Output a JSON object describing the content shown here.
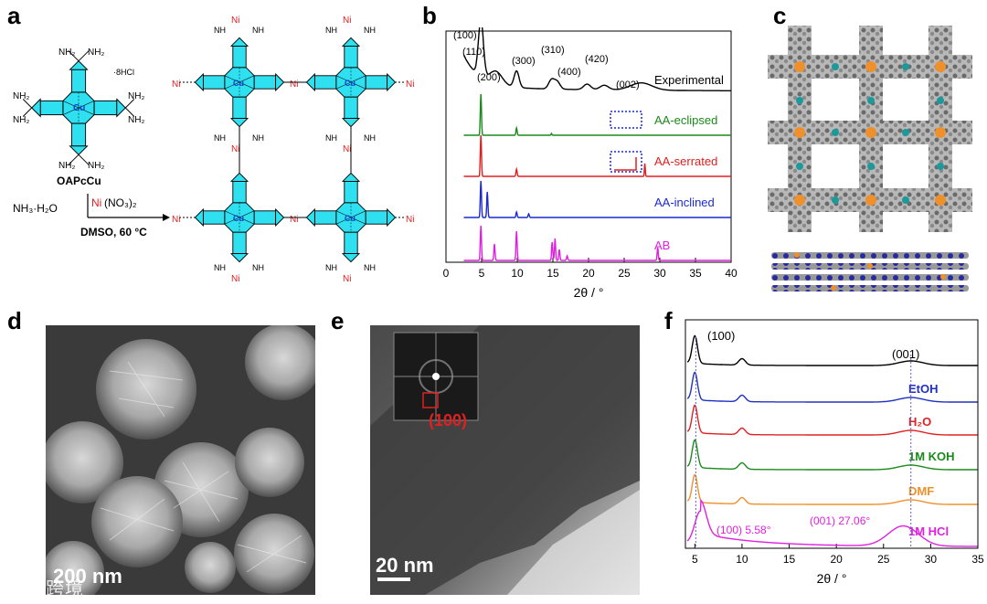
{
  "panels": {
    "a": "a",
    "b": "b",
    "c": "c",
    "d": "d",
    "e": "e",
    "f": "f"
  },
  "scheme": {
    "monomer_name": "OAPcCu",
    "salt": "·8HCl",
    "base": "NH₃·H₂O",
    "reagent_metal": "Ni",
    "reagent_rest": "(NO₃)₂",
    "conditions": "DMSO, 60 °C",
    "amine": "NH₂",
    "nh": "NH",
    "n": "N",
    "h": "H",
    "core_metal": "Cu",
    "node_metal": "Ni"
  },
  "sem": {
    "scale": "200 nm"
  },
  "tem": {
    "scale": "20 nm",
    "fft_label": "(100)"
  },
  "watermark": "大数跨境",
  "chart_data": [
    {
      "type": "line",
      "panel": "b",
      "title": "",
      "xlabel": "2θ / °",
      "ylabel": "",
      "xlim": [
        0,
        40
      ],
      "xticks": [
        "0",
        "5",
        "10",
        "15",
        "20",
        "25",
        "30",
        "35",
        "40"
      ],
      "series": [
        {
          "name": "Experimental",
          "color": "#000000"
        },
        {
          "name": "AA-eclipsed",
          "color": "#1a8a1a"
        },
        {
          "name": "AA-serrated",
          "color": "#e02020"
        },
        {
          "name": "AA-inclined",
          "color": "#1a2ad0"
        },
        {
          "name": "AB",
          "color": "#e020e0"
        }
      ],
      "peak_labels": [
        {
          "text": "(100)",
          "x": 4.9
        },
        {
          "text": "(110)",
          "x": 7.0
        },
        {
          "text": "(200)",
          "x": 9.9
        },
        {
          "text": "(300)",
          "x": 14.8
        },
        {
          "text": "(310)",
          "x": 15.6
        },
        {
          "text": "(400)",
          "x": 19.8
        },
        {
          "text": "(420)",
          "x": 22.2
        },
        {
          "text": "(002)",
          "x": 27.4
        }
      ]
    },
    {
      "type": "line",
      "panel": "f",
      "title": "",
      "xlabel": "2θ / °",
      "ylabel": "",
      "xlim": [
        4,
        35
      ],
      "xticks": [
        "5",
        "10",
        "15",
        "20",
        "25",
        "30",
        "35"
      ],
      "peak_labels": [
        {
          "text": "(100)",
          "x": 5.3
        },
        {
          "text": "(001)",
          "x": 27.9
        }
      ],
      "annotations": [
        {
          "text": "(100)  5.58°",
          "x": 5.58
        },
        {
          "text": "(001)  27.06°",
          "x": 27.06
        }
      ],
      "series": [
        {
          "name": "",
          "color": "#000000"
        },
        {
          "name": "EtOH",
          "color": "#2030c0"
        },
        {
          "name": "H₂O",
          "color": "#e02020"
        },
        {
          "name": "1M KOH",
          "color": "#1a8a1a"
        },
        {
          "name": "DMF",
          "color": "#f0902a"
        },
        {
          "name": "1M HCl",
          "color": "#e020e0"
        }
      ]
    }
  ]
}
